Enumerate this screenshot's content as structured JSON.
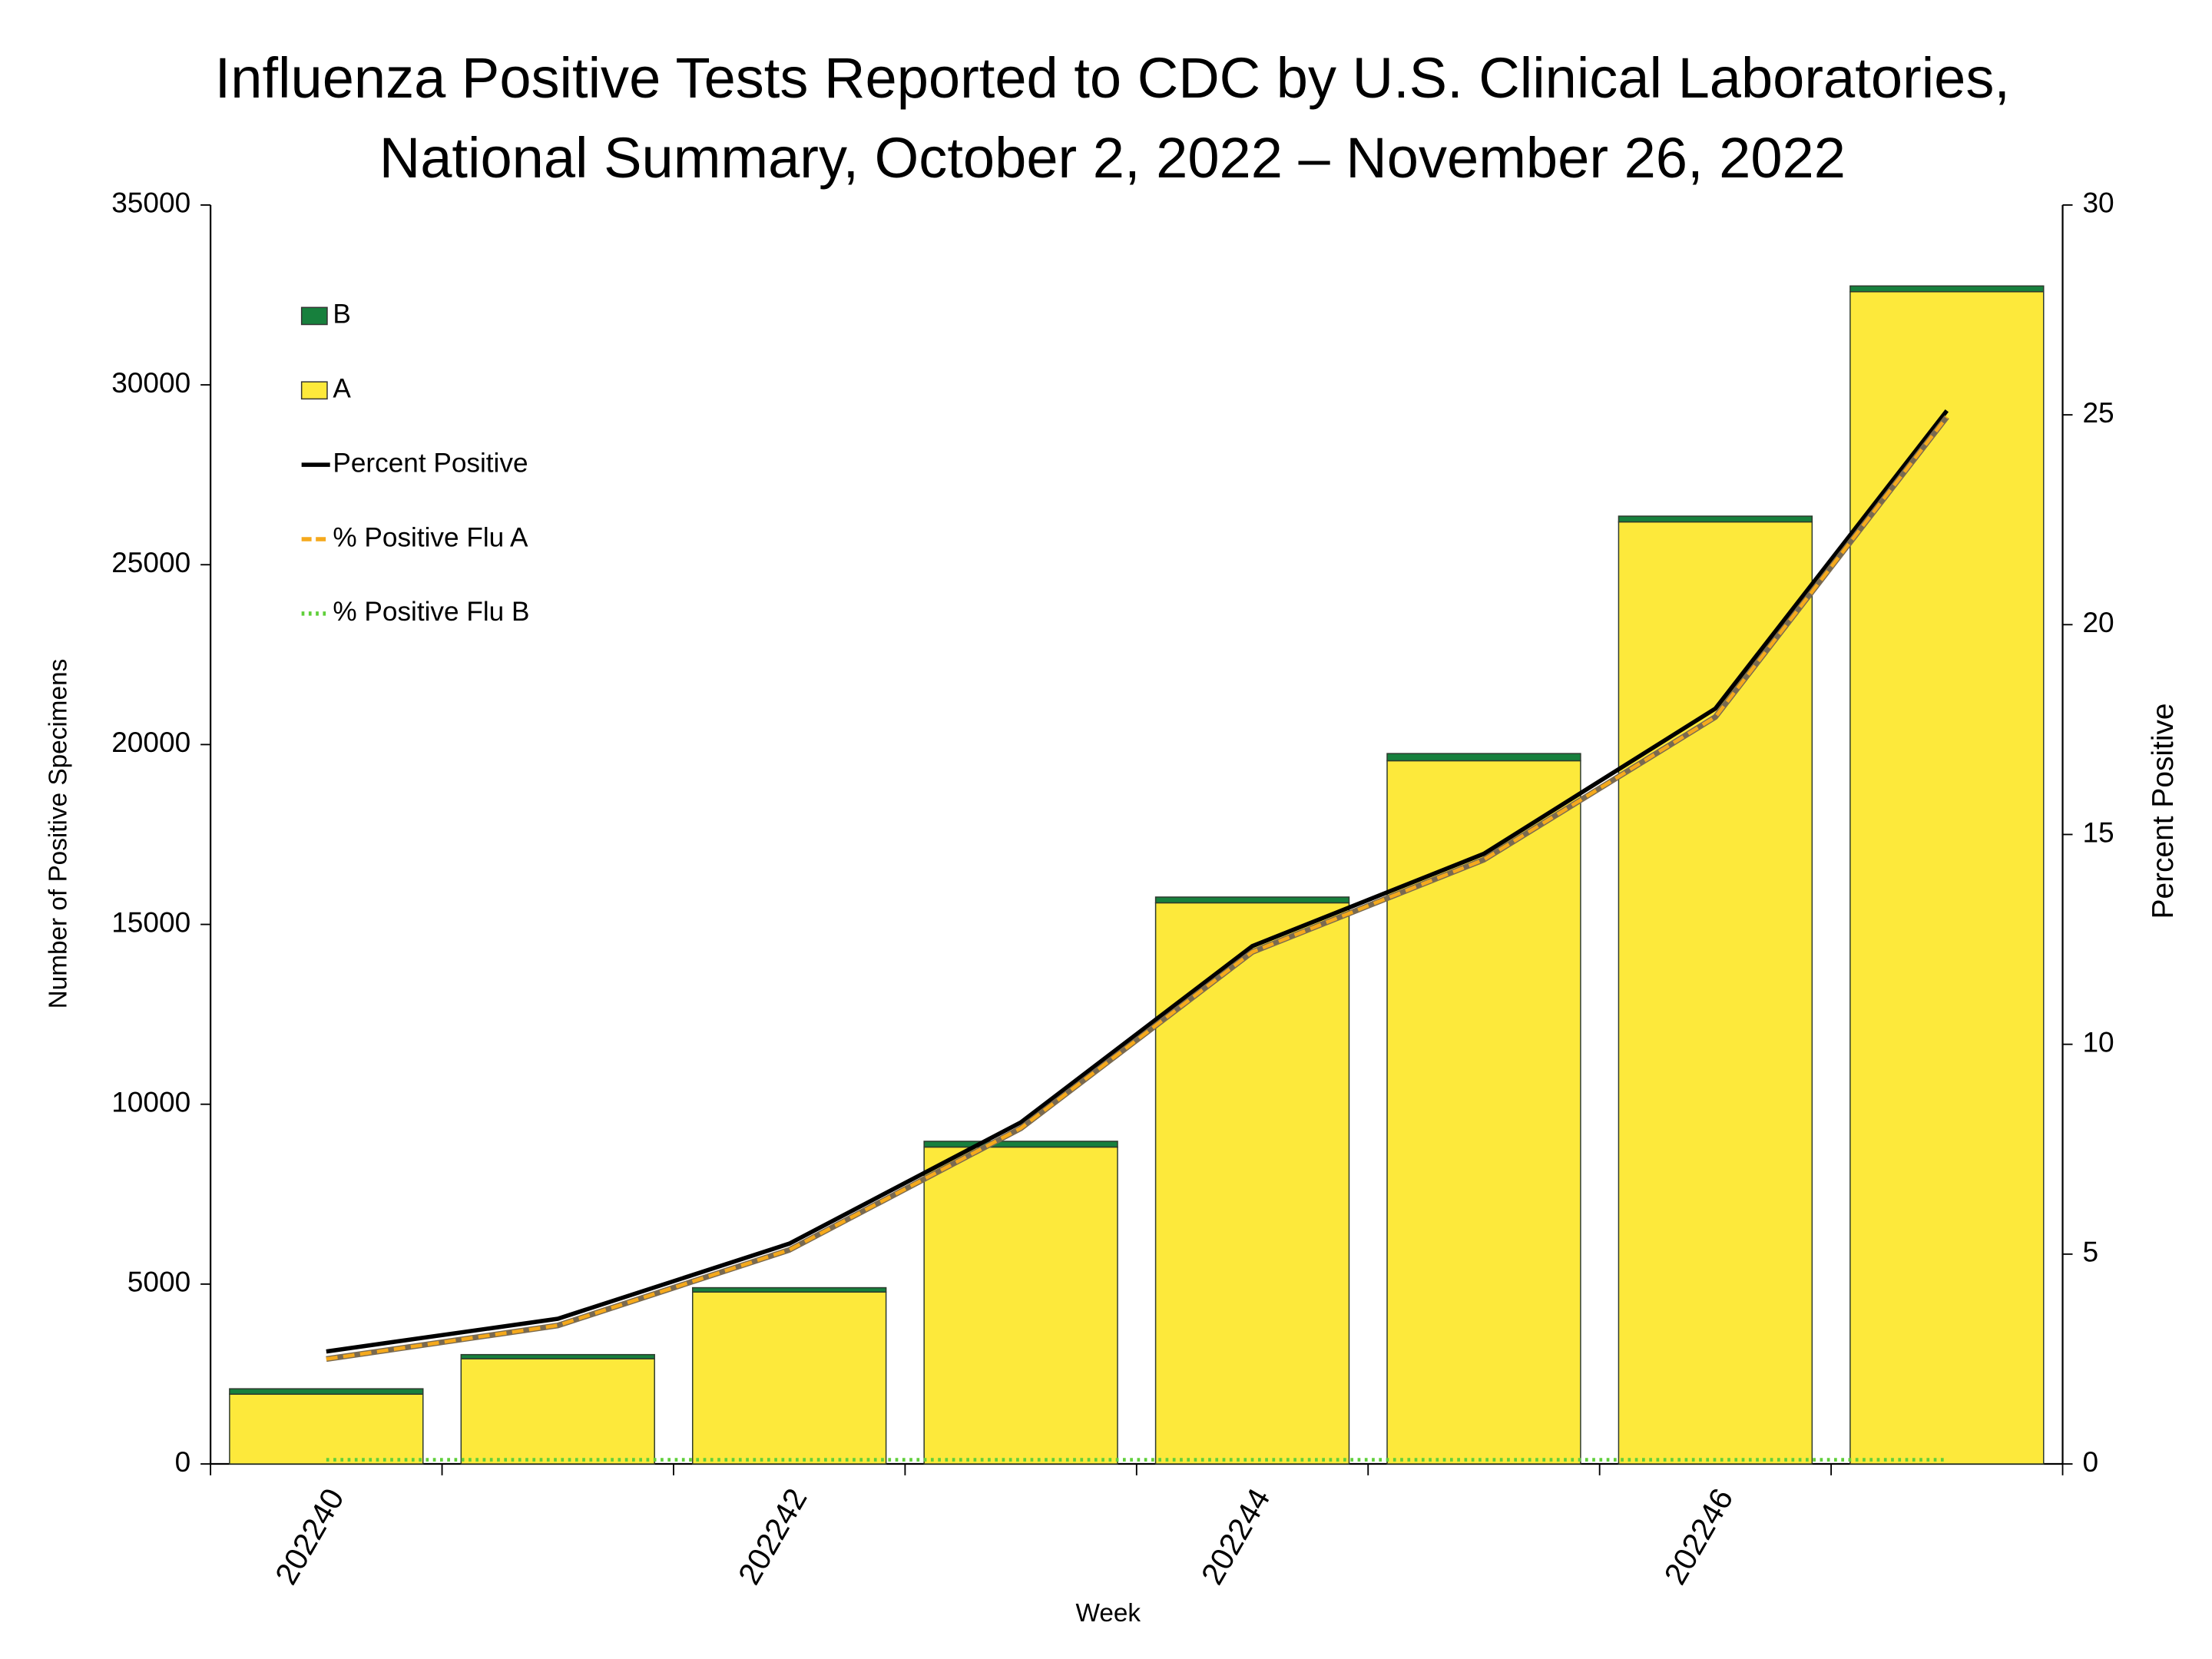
{
  "chart_data": {
    "type": "bar",
    "title": [
      "Influenza Positive Tests Reported to CDC by U.S. Clinical Laboratories,",
      "National Summary, October 2, 2022 – November 26, 2022"
    ],
    "xlabel": "Week",
    "ylabel": "Number of Positive Specimens",
    "y2label": "Percent Positive",
    "categories": [
      "202240",
      null,
      "202242",
      null,
      "202244",
      null,
      "202246",
      null
    ],
    "stacked": true,
    "legend": "upper left",
    "grid": false,
    "ylim": [
      0,
      35000
    ],
    "yticks": [
      0,
      5000,
      10000,
      15000,
      20000,
      25000,
      30000,
      35000
    ],
    "y2lim": [
      0,
      30
    ],
    "y2ticks": [
      0,
      5,
      10,
      15,
      20,
      25,
      30
    ],
    "series": [
      {
        "name": "B",
        "type": "bar",
        "color": "#17803d",
        "values": [
          150,
          115,
          120,
          160,
          160,
          200,
          160,
          160
        ]
      },
      {
        "name": "A",
        "type": "bar",
        "color": "#fde93b",
        "values": [
          1940,
          2925,
          4780,
          8810,
          15600,
          19550,
          26190,
          32590
        ]
      },
      {
        "name": "Percent Positive",
        "type": "line",
        "axis": "y2",
        "color": "#000000",
        "dash": "solid",
        "values": [
          2.68,
          3.46,
          5.25,
          8.14,
          12.34,
          14.54,
          18.0,
          25.1
        ]
      },
      {
        "name": "% Positive Flu A",
        "type": "line",
        "axis": "y2",
        "color": "#f5a91c",
        "dash": "dashed",
        "values": [
          2.5,
          3.3,
          5.1,
          8.0,
          12.2,
          14.4,
          17.8,
          24.95
        ]
      },
      {
        "name": "% Positive Flu B",
        "type": "line",
        "axis": "y2",
        "color": "#5fcf3a",
        "dash": "dotted",
        "values": [
          0.1,
          0.1,
          0.1,
          0.1,
          0.1,
          0.1,
          0.1,
          0.1
        ]
      }
    ]
  }
}
